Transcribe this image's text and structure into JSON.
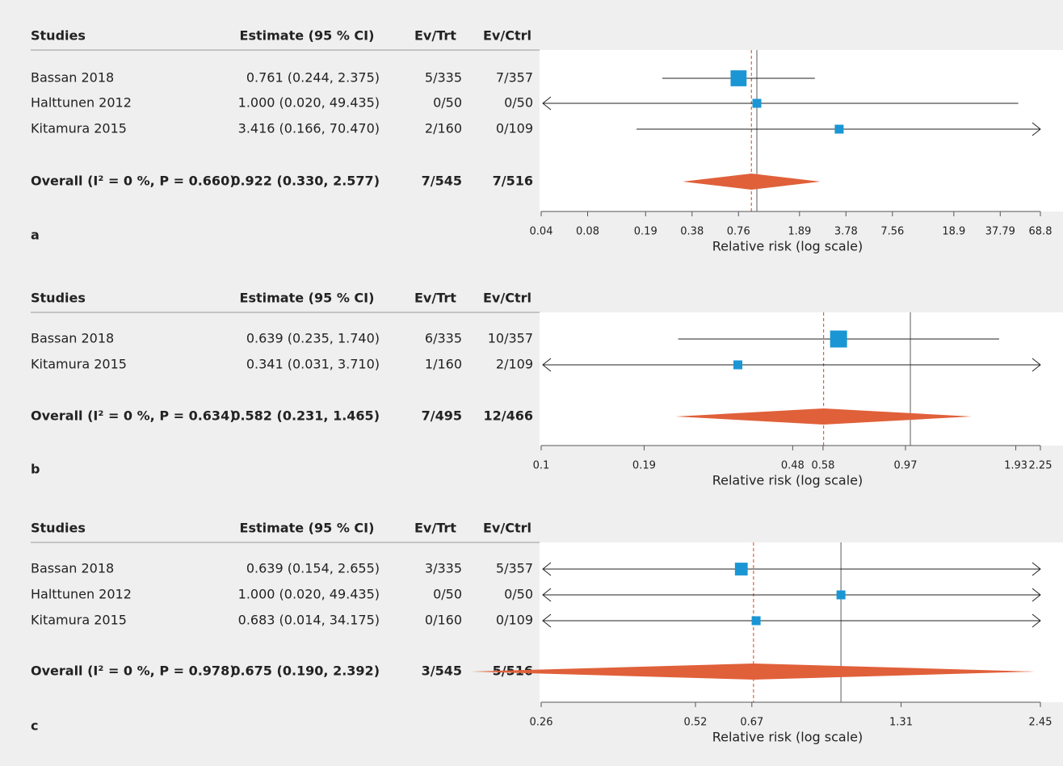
{
  "chart_data": [
    {
      "type": "forest",
      "panel": "a",
      "columns": [
        "Studies",
        "Estimate (95 % CI)",
        "Ev/Trt",
        "Ev/Ctrl"
      ],
      "rows": [
        {
          "study": "Bassan 2018",
          "estimate": "0.761 (0.244, 2.375)",
          "ev_trt": "5/335",
          "ev_ctrl": "7/357",
          "rr": 0.761,
          "lo": 0.244,
          "hi": 2.375
        },
        {
          "study": "Halttunen 2012",
          "estimate": "1.000 (0.020, 49.435)",
          "ev_trt": "0/50",
          "ev_ctrl": "0/50",
          "rr": 1.0,
          "lo": 0.02,
          "hi": 49.435
        },
        {
          "study": "Kitamura 2015",
          "estimate": "3.416 (0.166, 70.470)",
          "ev_trt": "2/160",
          "ev_ctrl": "0/109",
          "rr": 3.416,
          "lo": 0.166,
          "hi": 70.47
        }
      ],
      "overall": {
        "label": "Overall (I² = 0 %, P = 0.660)",
        "estimate": "0.922 (0.330, 2.577)",
        "ev_trt": "7/545",
        "ev_ctrl": "7/516",
        "rr": 0.922,
        "lo": 0.33,
        "hi": 2.577
      },
      "xlabel": "Relative risk (log scale)",
      "log_scale": true,
      "reference_line": 1,
      "xlim": [
        0.04,
        68.8
      ],
      "xticks": [
        0.04,
        0.08,
        0.19,
        0.38,
        0.76,
        1.89,
        3.78,
        7.56,
        18.9,
        37.79,
        68.8
      ],
      "marker_color": "#1a96d4",
      "diamond_color": "#e0603a"
    },
    {
      "type": "forest",
      "panel": "b",
      "columns": [
        "Studies",
        "Estimate (95 % CI)",
        "Ev/Trt",
        "Ev/Ctrl"
      ],
      "rows": [
        {
          "study": "Bassan 2018",
          "estimate": "0.639 (0.235, 1.740)",
          "ev_trt": "6/335",
          "ev_ctrl": "10/357",
          "rr": 0.639,
          "lo": 0.235,
          "hi": 1.74
        },
        {
          "study": "Kitamura 2015",
          "estimate": "0.341 (0.031, 3.710)",
          "ev_trt": "1/160",
          "ev_ctrl": "2/109",
          "rr": 0.341,
          "lo": 0.031,
          "hi": 3.71
        }
      ],
      "overall": {
        "label": "Overall (I² = 0 %, P = 0.634)",
        "estimate": "0.582 (0.231, 1.465)",
        "ev_trt": "7/495",
        "ev_ctrl": "12/466",
        "rr": 0.582,
        "lo": 0.231,
        "hi": 1.465
      },
      "xlabel": "Relative risk (log scale)",
      "log_scale": true,
      "reference_line": 1,
      "xlim": [
        0.1,
        2.25
      ],
      "xticks": [
        0.1,
        0.19,
        0.48,
        0.58,
        0.97,
        1.93,
        2.25
      ],
      "marker_color": "#1a96d4",
      "diamond_color": "#e0603a"
    },
    {
      "type": "forest",
      "panel": "c",
      "columns": [
        "Studies",
        "Estimate (95 % CI)",
        "Ev/Trt",
        "Ev/Ctrl"
      ],
      "rows": [
        {
          "study": "Bassan 2018",
          "estimate": "0.639 (0.154, 2.655)",
          "ev_trt": "3/335",
          "ev_ctrl": "5/357",
          "rr": 0.639,
          "lo": 0.154,
          "hi": 2.655
        },
        {
          "study": "Halttunen 2012",
          "estimate": "1.000 (0.020, 49.435)",
          "ev_trt": "0/50",
          "ev_ctrl": "0/50",
          "rr": 1.0,
          "lo": 0.02,
          "hi": 49.435
        },
        {
          "study": "Kitamura 2015",
          "estimate": "0.683 (0.014, 34.175)",
          "ev_trt": "0/160",
          "ev_ctrl": "0/109",
          "rr": 0.683,
          "lo": 0.014,
          "hi": 34.175
        }
      ],
      "overall": {
        "label": "Overall (I² = 0 %, P = 0.978)",
        "estimate": "0.675 (0.190, 2.392)",
        "ev_trt": "3/545",
        "ev_ctrl": "5/516",
        "rr": 0.675,
        "lo": 0.19,
        "hi": 2.392
      },
      "xlabel": "Relative risk (log scale)",
      "log_scale": true,
      "reference_line": 1,
      "xlim": [
        0.26,
        2.45
      ],
      "xticks": [
        0.26,
        0.52,
        0.67,
        1.31,
        2.45
      ],
      "marker_color": "#1a96d4",
      "diamond_color": "#e0603a"
    }
  ]
}
